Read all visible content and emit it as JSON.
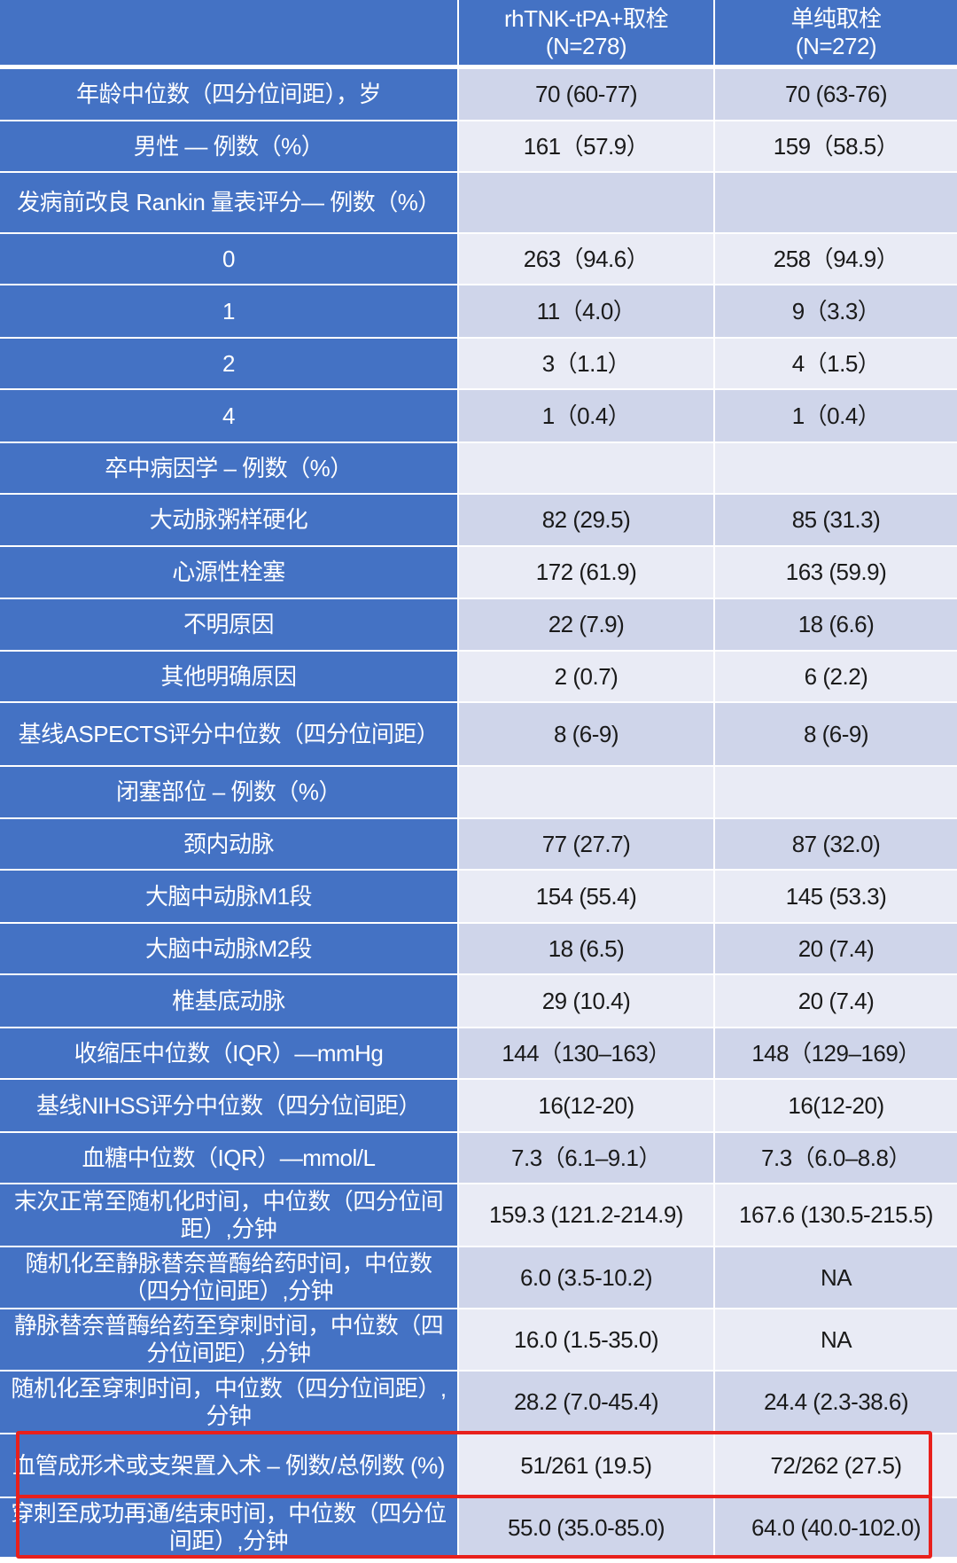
{
  "header": {
    "col0": "",
    "col1": "rhTNK-tPA+取栓\n(N=278)",
    "col2": "单纯取栓\n(N=272)"
  },
  "rows": [
    {
      "label": "年龄中位数（四分位间距），岁",
      "v1": "70 (60-77)",
      "v2": "70 (63-76)"
    },
    {
      "label": "男性 — 例数（%）",
      "v1": "161（57.9）",
      "v2": "159（58.5）"
    },
    {
      "label": "发病前改良 Rankin 量表评分— 例数（%）",
      "v1": "",
      "v2": ""
    },
    {
      "label": "0",
      "v1": "263（94.6）",
      "v2": "258（94.9）"
    },
    {
      "label": "1",
      "v1": "11（4.0）",
      "v2": "9（3.3）"
    },
    {
      "label": "2",
      "v1": "3（1.1）",
      "v2": "4（1.5）"
    },
    {
      "label": "4",
      "v1": "1（0.4）",
      "v2": "1（0.4）"
    },
    {
      "label": "卒中病因学 – 例数（%）",
      "v1": "",
      "v2": ""
    },
    {
      "label": "大动脉粥样硬化",
      "v1": "82 (29.5)",
      "v2": "85 (31.3)"
    },
    {
      "label": "心源性栓塞",
      "v1": "172 (61.9)",
      "v2": "163 (59.9)"
    },
    {
      "label": "不明原因",
      "v1": "22 (7.9)",
      "v2": "18 (6.6)"
    },
    {
      "label": "其他明确原因",
      "v1": "2 (0.7)",
      "v2": "6 (2.2)"
    },
    {
      "label": "基线ASPECTS评分中位数（四分位间距）",
      "v1": "8 (6-9)",
      "v2": "8 (6-9)"
    },
    {
      "label": "闭塞部位 – 例数（%）",
      "v1": "",
      "v2": ""
    },
    {
      "label": "颈内动脉",
      "v1": "77 (27.7)",
      "v2": "87 (32.0)"
    },
    {
      "label": "大脑中动脉M1段",
      "v1": "154 (55.4)",
      "v2": "145 (53.3)"
    },
    {
      "label": "大脑中动脉M2段",
      "v1": "18 (6.5)",
      "v2": "20 (7.4)"
    },
    {
      "label": "椎基底动脉",
      "v1": "29 (10.4)",
      "v2": "20 (7.4)"
    },
    {
      "label": "收缩压中位数（IQR）—mmHg",
      "v1": "144（130–163）",
      "v2": "148（129–169）"
    },
    {
      "label": "基线NIHSS评分中位数（四分位间距）",
      "v1": "16(12-20)",
      "v2": "16(12-20)"
    },
    {
      "label": "血糖中位数（IQR）—mmol/L",
      "v1": "7.3（6.1–9.1）",
      "v2": "7.3（6.0–8.8）"
    },
    {
      "label": "末次正常至随机化时间，中位数（四分位间距）,分钟",
      "v1": "159.3 (121.2-214.9)",
      "v2": "167.6 (130.5-215.5)"
    },
    {
      "label": "随机化至静脉替奈普酶给药时间，中位数（四分位间距）,分钟",
      "v1": "6.0 (3.5-10.2)",
      "v2": "NA"
    },
    {
      "label": "静脉替奈普酶给药至穿刺时间，中位数（四分位间距）,分钟",
      "v1": "16.0 (1.5-35.0)",
      "v2": "NA"
    },
    {
      "label": "随机化至穿刺时间，中位数（四分位间距）,分钟",
      "v1": "28.2 (7.0-45.4)",
      "v2": "24.4 (2.3-38.6)"
    },
    {
      "label": "血管成形术或支架置入术 – 例数/总例数 (%)",
      "v1": "51/261 (19.5)",
      "v2": "72/262 (27.5)"
    },
    {
      "label": "穿刺至成功再通/结束时间，中位数（四分位间距）,分钟",
      "v1": "55.0 (35.0-85.0)",
      "v2": "64.0 (40.0-102.0)"
    }
  ],
  "highlighted_rows": [
    25,
    26
  ],
  "colors": {
    "label_bg": "#4472c4",
    "cell_dark": "#cfd5ea",
    "cell_light": "#e9ebf5",
    "highlight": "#e8201c"
  }
}
